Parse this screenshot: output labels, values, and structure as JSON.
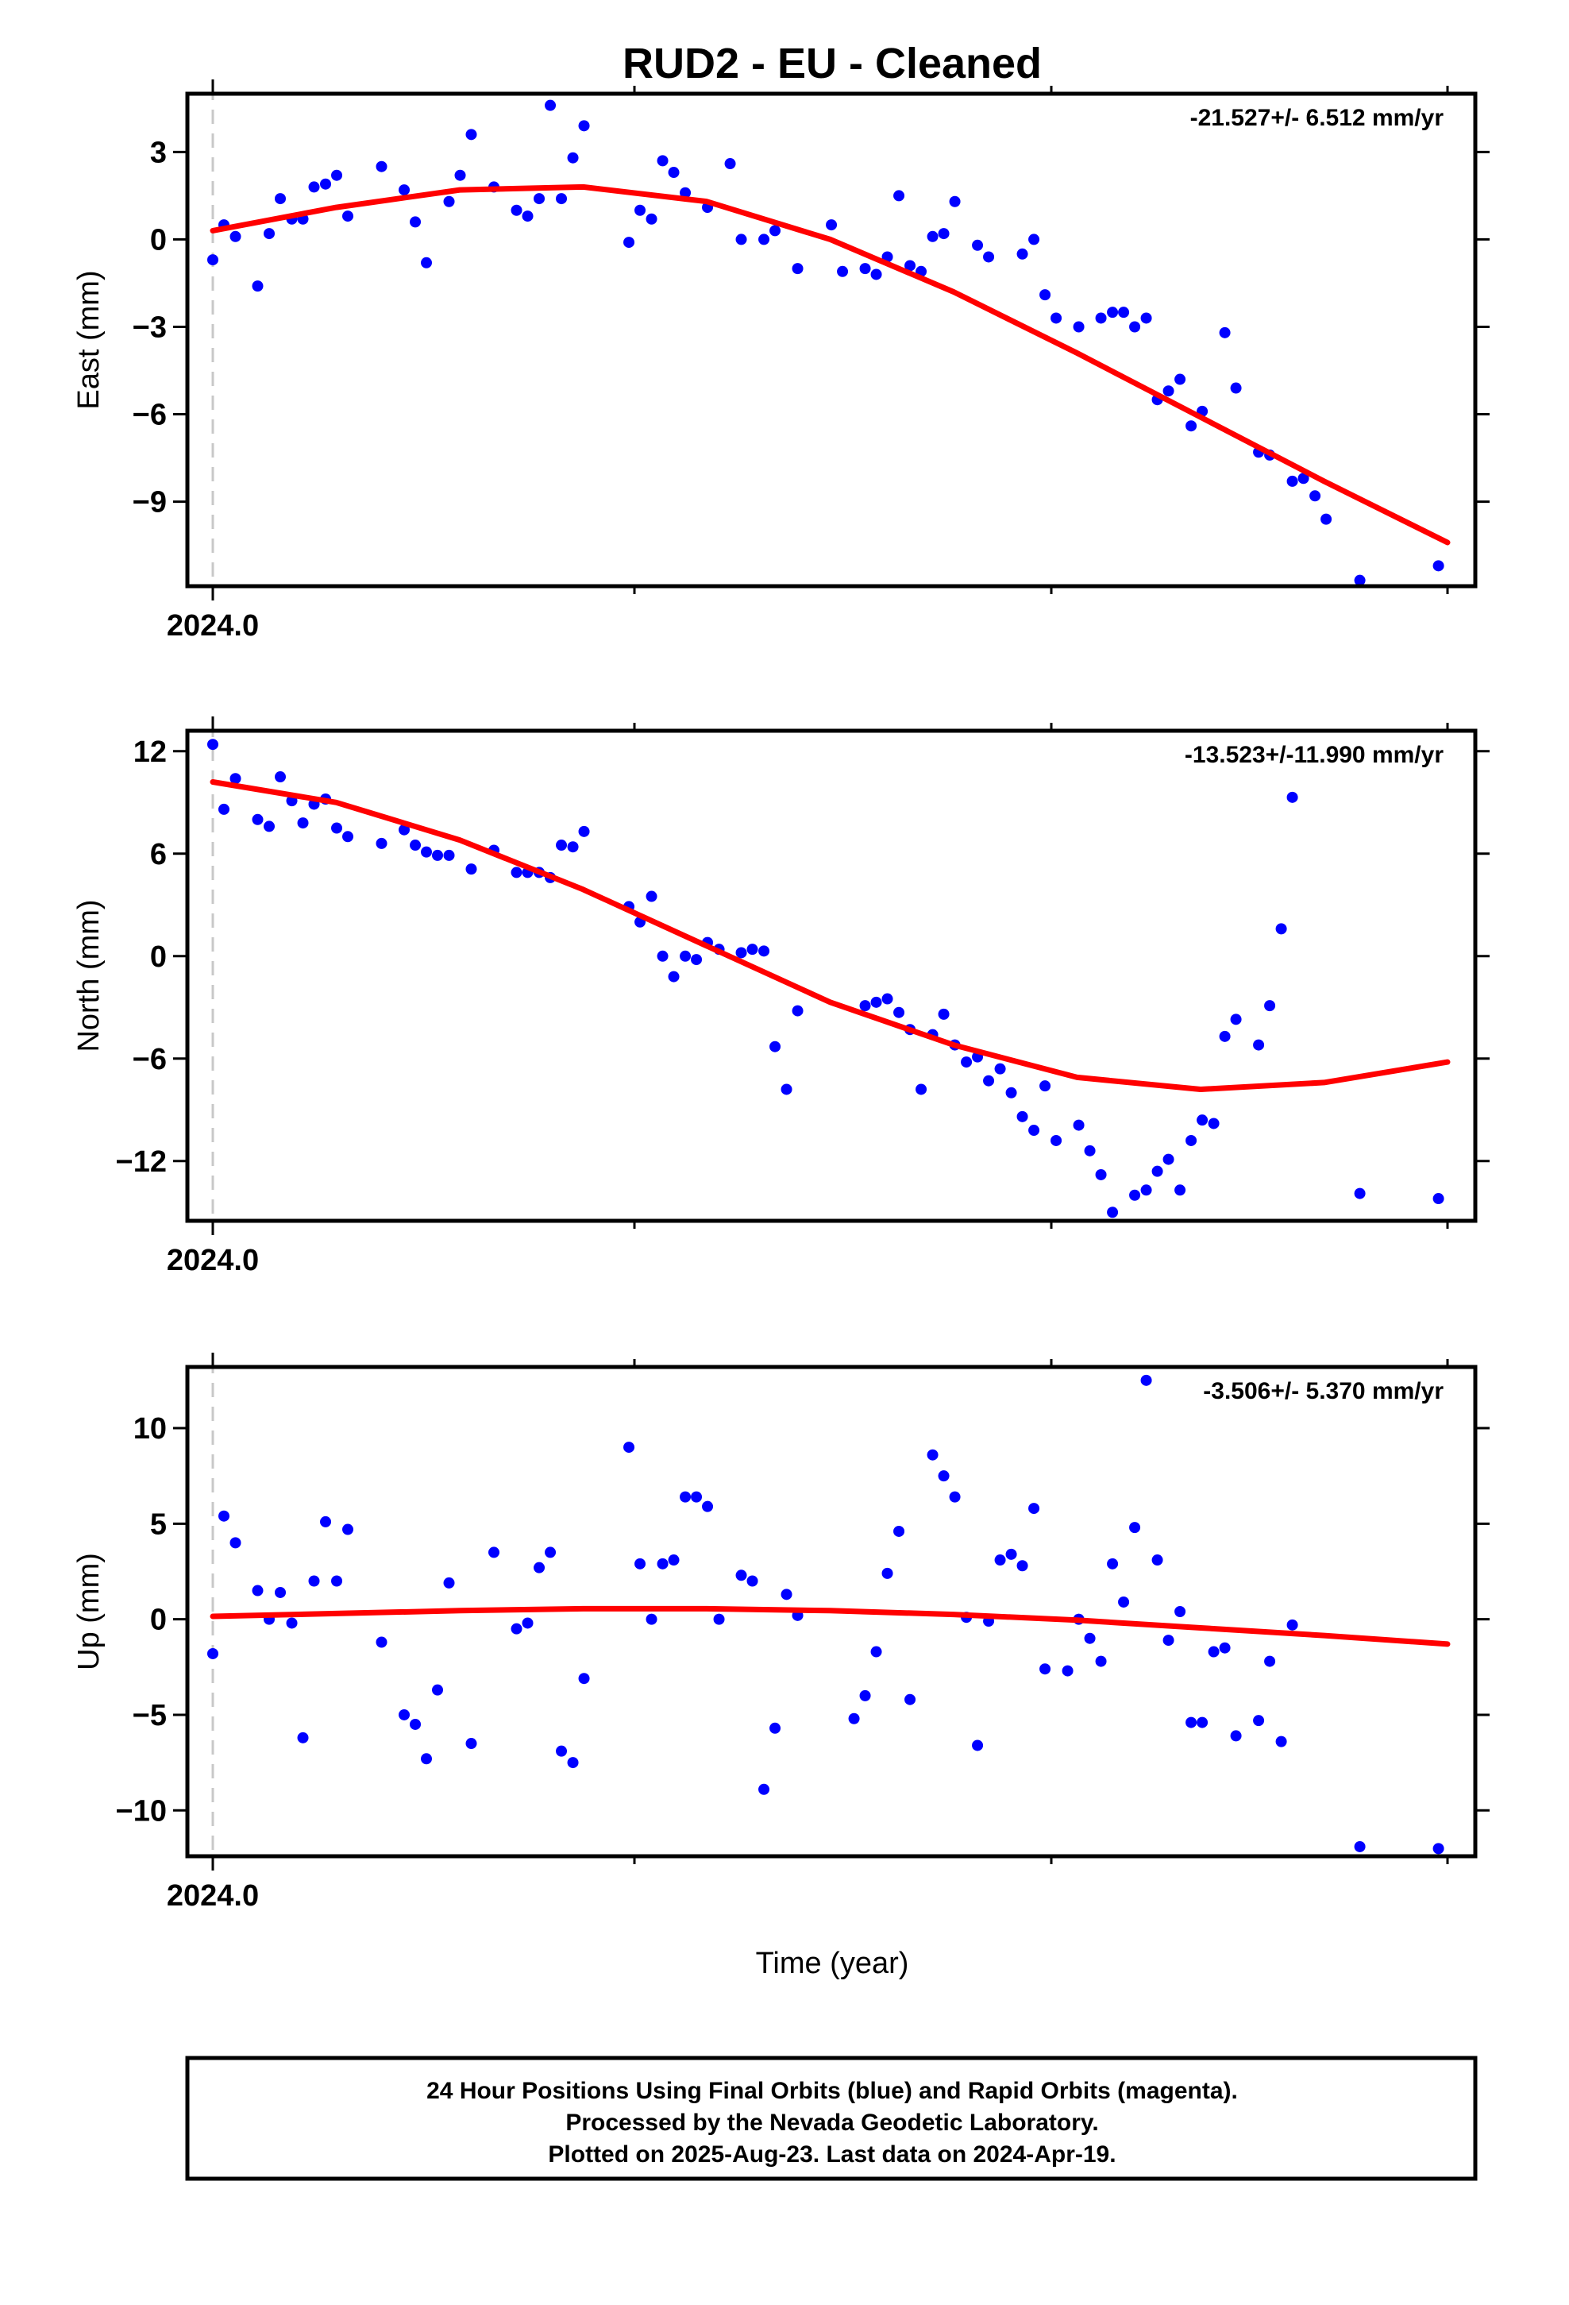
{
  "title": "RUD2  - EU - Cleaned",
  "xlabel": "Time (year)",
  "footer": {
    "line1": "24 Hour Positions Using Final Orbits (blue) and Rapid Orbits (magenta).",
    "line2": "Processed by the Nevada Geodetic Laboratory.",
    "line3": "Plotted on 2025-Aug-23. Last data on 2024-Apr-19."
  },
  "colors": {
    "points": "#0000ff",
    "fit": "#ff0000",
    "reference_line": "#c8c8c8"
  },
  "chart_data": [
    {
      "type": "scatter",
      "panel": "east",
      "ylabel": "East (mm)",
      "rate_label": "-21.527+/- 6.512 mm/yr",
      "x_tick_label": "2024.0",
      "xlim": [
        2024.0,
        2024.3
      ],
      "ylim": [
        -11.9,
        5.0
      ],
      "yticks": [
        3,
        0,
        -3,
        -6,
        -9
      ],
      "ytick_labels": [
        "3",
        "0",
        "−3",
        "−6",
        "−9"
      ],
      "fit_curve": {
        "x": [
          2024.0,
          2024.03,
          2024.06,
          2024.09,
          2024.12,
          2024.15,
          2024.18,
          2024.21,
          2024.24,
          2024.27,
          2024.3
        ],
        "y": [
          0.3,
          1.1,
          1.7,
          1.8,
          1.3,
          0.0,
          -1.8,
          -3.9,
          -6.1,
          -8.3,
          -10.4
        ]
      },
      "series": [
        {
          "x": [
            2024.0,
            2024.0027,
            2024.0055,
            2024.0109,
            2024.0137,
            2024.0164,
            2024.0192,
            2024.0219,
            2024.0246,
            2024.0274,
            2024.0301,
            2024.0328,
            2024.041,
            2024.0465,
            2024.0492,
            2024.0519,
            2024.0574,
            2024.0601,
            2024.0628,
            2024.0683,
            2024.0738,
            2024.0765,
            2024.0793,
            2024.082,
            2024.0847,
            2024.0875,
            2024.0902,
            2024.1011,
            2024.1038,
            2024.1066,
            2024.1093,
            2024.112,
            2024.1148,
            2024.1202,
            2024.1257,
            2024.1284,
            2024.1339,
            2024.1366,
            2024.1421,
            2024.1503,
            2024.153,
            2024.1585,
            2024.1612,
            2024.1639,
            2024.1667,
            2024.1694,
            2024.1721,
            2024.1749,
            2024.1776,
            2024.1803,
            2024.1858,
            2024.1885,
            2024.1967,
            2024.1995,
            2024.2022,
            2024.2049,
            2024.2104,
            2024.2158,
            2024.2186,
            2024.2213,
            2024.224,
            2024.2268,
            2024.2295,
            2024.2322,
            2024.235,
            2024.2377,
            2024.2404,
            2024.2459,
            2024.2486,
            2024.2541,
            2024.2568,
            2024.2623,
            2024.265,
            2024.2678,
            2024.2705,
            2024.2787,
            2024.2978
          ],
          "y": [
            -0.7,
            0.5,
            0.1,
            -1.6,
            0.2,
            1.4,
            0.7,
            0.7,
            1.8,
            1.9,
            2.2,
            0.8,
            2.5,
            1.7,
            0.6,
            -0.8,
            1.3,
            2.2,
            3.6,
            1.8,
            1.0,
            0.8,
            1.4,
            4.6,
            1.4,
            2.8,
            3.9,
            -0.1,
            1.0,
            0.7,
            2.7,
            2.3,
            1.6,
            1.1,
            2.6,
            0.0,
            0.0,
            0.3,
            -1.0,
            0.5,
            -1.1,
            -1.0,
            -1.2,
            -0.6,
            1.5,
            -0.9,
            -1.1,
            0.1,
            0.2,
            1.3,
            -0.2,
            -0.6,
            -0.5,
            0.0,
            -1.9,
            -2.7,
            -3.0,
            -2.7,
            -2.5,
            -2.5,
            -3.0,
            -2.7,
            -5.5,
            -5.2,
            -4.8,
            -6.4,
            -5.9,
            -3.2,
            -5.1,
            -7.3,
            -7.4,
            -8.3,
            -8.2,
            -8.8,
            -9.6,
            -11.7,
            -11.2
          ]
        }
      ]
    },
    {
      "type": "scatter",
      "panel": "north",
      "ylabel": "North (mm)",
      "rate_label": "-13.523+/-11.990 mm/yr",
      "x_tick_label": "2024.0",
      "xlim": [
        2024.0,
        2024.3
      ],
      "ylim": [
        -15.5,
        13.2
      ],
      "yticks": [
        12,
        6,
        0,
        -6,
        -12
      ],
      "ytick_labels": [
        "12",
        "6",
        "0",
        "−6",
        "−12"
      ],
      "fit_curve": {
        "x": [
          2024.0,
          2024.03,
          2024.06,
          2024.09,
          2024.12,
          2024.15,
          2024.18,
          2024.21,
          2024.24,
          2024.27,
          2024.3
        ],
        "y": [
          10.2,
          9.0,
          6.8,
          3.9,
          0.6,
          -2.7,
          -5.2,
          -7.1,
          -7.8,
          -7.4,
          -6.2
        ]
      },
      "series": [
        {
          "x": [
            2024.0,
            2024.0027,
            2024.0055,
            2024.0109,
            2024.0137,
            2024.0164,
            2024.0192,
            2024.0219,
            2024.0246,
            2024.0274,
            2024.0301,
            2024.0328,
            2024.041,
            2024.0465,
            2024.0492,
            2024.0519,
            2024.0546,
            2024.0574,
            2024.0628,
            2024.0683,
            2024.0738,
            2024.0765,
            2024.0793,
            2024.082,
            2024.0847,
            2024.0875,
            2024.0902,
            2024.1011,
            2024.1038,
            2024.1066,
            2024.1093,
            2024.112,
            2024.1148,
            2024.1175,
            2024.1202,
            2024.123,
            2024.1284,
            2024.1311,
            2024.1339,
            2024.1366,
            2024.1394,
            2024.1421,
            2024.1585,
            2024.1612,
            2024.1639,
            2024.1667,
            2024.1694,
            2024.1721,
            2024.1749,
            2024.1776,
            2024.1803,
            2024.1831,
            2024.1858,
            2024.1885,
            2024.1913,
            2024.194,
            2024.1967,
            2024.1995,
            2024.2022,
            2024.2049,
            2024.2104,
            2024.2131,
            2024.2158,
            2024.2186,
            2024.224,
            2024.2268,
            2024.2295,
            2024.2322,
            2024.235,
            2024.2377,
            2024.2404,
            2024.2432,
            2024.2459,
            2024.2486,
            2024.2541,
            2024.2568,
            2024.2596,
            2024.2623,
            2024.2787,
            2024.2978
          ],
          "y": [
            12.4,
            8.6,
            10.4,
            8.0,
            7.6,
            10.5,
            9.1,
            7.8,
            8.9,
            9.2,
            7.5,
            7.0,
            6.6,
            7.4,
            6.5,
            6.1,
            5.9,
            5.9,
            5.1,
            6.2,
            4.9,
            4.9,
            4.9,
            4.6,
            6.5,
            6.4,
            7.3,
            2.9,
            2.0,
            3.5,
            0.0,
            -1.2,
            0.0,
            -0.2,
            0.8,
            0.4,
            0.2,
            0.4,
            0.3,
            -5.3,
            -7.8,
            -3.2,
            -2.9,
            -2.7,
            -2.5,
            -3.3,
            -4.3,
            -7.8,
            -4.6,
            -3.4,
            -5.2,
            -6.2,
            -5.9,
            -7.3,
            -6.6,
            -8.0,
            -9.4,
            -10.2,
            -7.6,
            -10.8,
            -9.9,
            -11.4,
            -12.8,
            -15.0,
            -14.0,
            -13.7,
            -12.6,
            -11.9,
            -13.7,
            -10.8,
            -9.6,
            -9.8,
            -4.7,
            -3.7,
            -5.2,
            -2.9,
            1.6,
            9.3,
            -13.9,
            -14.2
          ]
        }
      ]
    },
    {
      "type": "scatter",
      "panel": "up",
      "ylabel": "Up (mm)",
      "rate_label": "-3.506+/- 5.370 mm/yr",
      "x_tick_label": "2024.0",
      "xlim": [
        2024.0,
        2024.3
      ],
      "ylim": [
        -12.4,
        13.2
      ],
      "yticks": [
        10,
        5,
        0,
        -5,
        -10
      ],
      "ytick_labels": [
        "10",
        "5",
        "0",
        "−5",
        "−10"
      ],
      "fit_curve": {
        "x": [
          2024.0,
          2024.03,
          2024.06,
          2024.09,
          2024.12,
          2024.15,
          2024.18,
          2024.21,
          2024.24,
          2024.27,
          2024.3
        ],
        "y": [
          0.15,
          0.3,
          0.45,
          0.55,
          0.55,
          0.45,
          0.25,
          -0.05,
          -0.45,
          -0.85,
          -1.3
        ]
      },
      "series": [
        {
          "x": [
            2024.0,
            2024.0027,
            2024.0055,
            2024.0109,
            2024.0137,
            2024.0164,
            2024.0192,
            2024.0219,
            2024.0246,
            2024.0274,
            2024.0301,
            2024.0328,
            2024.041,
            2024.0465,
            2024.0492,
            2024.0519,
            2024.0546,
            2024.0574,
            2024.0628,
            2024.0683,
            2024.0738,
            2024.0765,
            2024.0793,
            2024.082,
            2024.0847,
            2024.0875,
            2024.0902,
            2024.1011,
            2024.1038,
            2024.1066,
            2024.1093,
            2024.112,
            2024.1148,
            2024.1175,
            2024.1202,
            2024.123,
            2024.1284,
            2024.1311,
            2024.1339,
            2024.1366,
            2024.1394,
            2024.1421,
            2024.1558,
            2024.1585,
            2024.1612,
            2024.1639,
            2024.1667,
            2024.1694,
            2024.1749,
            2024.1776,
            2024.1803,
            2024.1831,
            2024.1858,
            2024.1885,
            2024.1913,
            2024.194,
            2024.1967,
            2024.1995,
            2024.2022,
            2024.2077,
            2024.2104,
            2024.2131,
            2024.2158,
            2024.2186,
            2024.2213,
            2024.224,
            2024.2268,
            2024.2295,
            2024.2322,
            2024.235,
            2024.2377,
            2024.2404,
            2024.2432,
            2024.2459,
            2024.2486,
            2024.2541,
            2024.2568,
            2024.2596,
            2024.2623,
            2024.2787,
            2024.2978
          ],
          "y": [
            -1.8,
            5.4,
            4.0,
            1.5,
            0.0,
            1.4,
            -0.2,
            -6.2,
            2.0,
            5.1,
            2.0,
            4.7,
            -1.2,
            -5.0,
            -5.5,
            -7.3,
            -3.7,
            1.9,
            -6.5,
            3.5,
            -0.5,
            -0.2,
            2.7,
            3.5,
            -6.9,
            -7.5,
            -3.1,
            9.0,
            2.9,
            0.0,
            2.9,
            3.1,
            6.4,
            6.4,
            5.9,
            0.0,
            2.3,
            2.0,
            -8.9,
            -5.7,
            1.3,
            0.2,
            -5.2,
            -4.0,
            -1.7,
            2.4,
            4.6,
            -4.2,
            8.6,
            7.5,
            6.4,
            0.1,
            -6.6,
            -0.1,
            3.1,
            3.4,
            2.8,
            5.8,
            -2.6,
            -2.7,
            0.0,
            -1.0,
            -2.2,
            2.9,
            0.9,
            4.8,
            12.5,
            3.1,
            -1.1,
            0.4,
            -5.4,
            -5.4,
            -1.7,
            -1.5,
            -6.1,
            -5.3,
            -2.2,
            -6.4,
            -0.3,
            -11.9,
            -12.0
          ]
        }
      ]
    }
  ]
}
